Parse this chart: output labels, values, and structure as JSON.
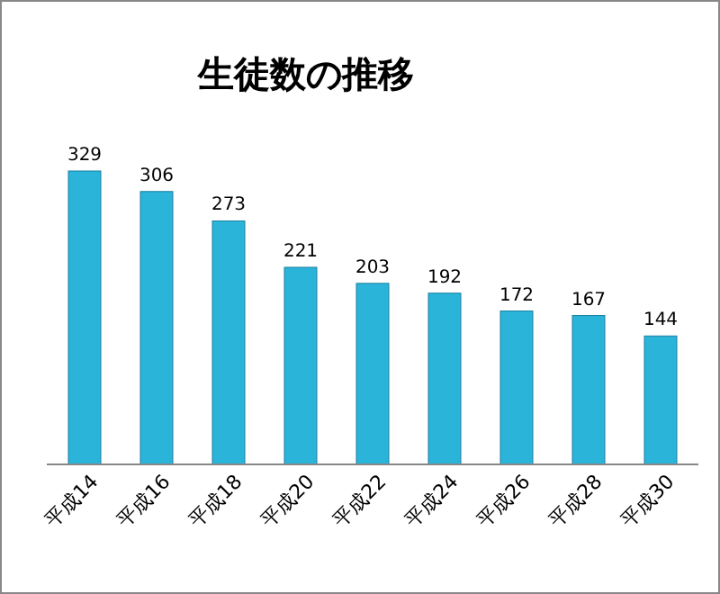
{
  "chart_data": {
    "type": "bar",
    "title": "生徒数の推移",
    "categories": [
      "平成14",
      "平成16",
      "平成18",
      "平成20",
      "平成22",
      "平成24",
      "平成26",
      "平成28",
      "平成30"
    ],
    "values": [
      329,
      306,
      273,
      221,
      203,
      192,
      172,
      167,
      144
    ],
    "color": "#2ab4d9",
    "data_labels": true,
    "tick_labels": "x"
  }
}
